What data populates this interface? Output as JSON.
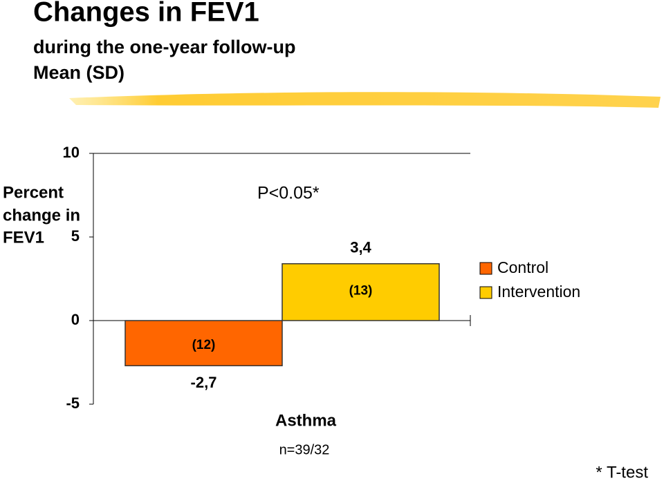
{
  "chart_data": {
    "type": "bar",
    "title": "Changes in FEV1",
    "subtitle": [
      "during the one-year follow-up",
      "Mean (SD)"
    ],
    "y_label": [
      "Percent",
      "change in",
      "FEV1"
    ],
    "annotation": "P<0.05*",
    "footnote": "* T-test",
    "note": "n=39/32",
    "categories": [
      "Asthma"
    ],
    "series": [
      {
        "name": "Control",
        "color": "#ff6600",
        "values": [
          -2.7
        ],
        "value_labels": [
          "-2,7"
        ],
        "sd_labels": [
          "(12)"
        ]
      },
      {
        "name": "Intervention",
        "color": "#ffcc00",
        "values": [
          3.4
        ],
        "value_labels": [
          "3,4"
        ],
        "sd_labels": [
          "(13)"
        ]
      }
    ],
    "ylim": [
      -5,
      10
    ],
    "yticks": [
      -5,
      0,
      5,
      10
    ],
    "grid": false,
    "legend": "right"
  }
}
